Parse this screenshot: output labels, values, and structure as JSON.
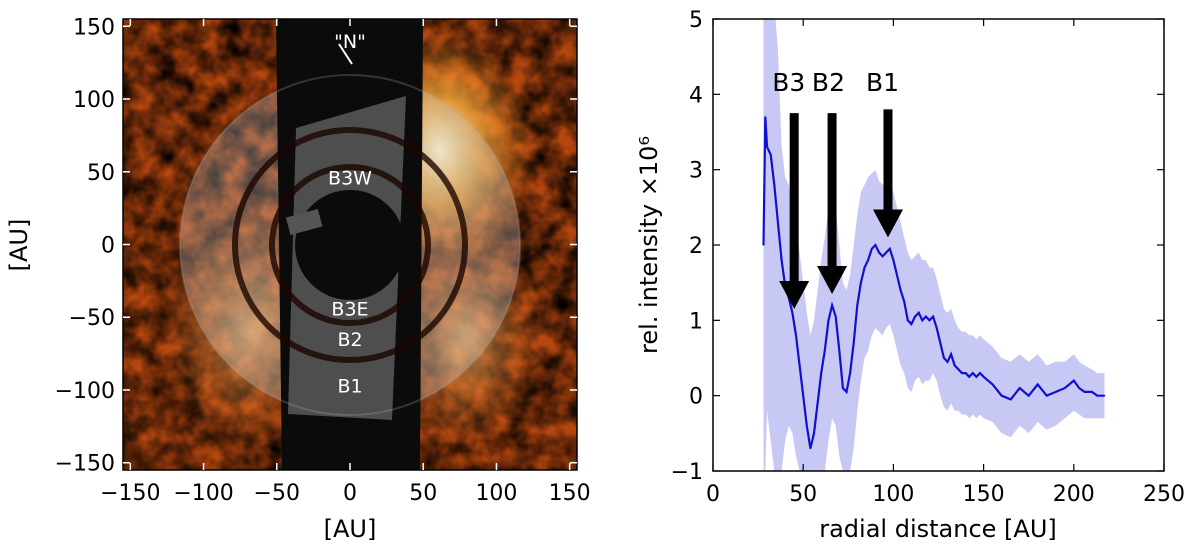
{
  "chart_data": [
    {
      "type": "heatmap",
      "xlabel": "[AU]",
      "ylabel": "[AU]",
      "xlim": [
        -155,
        155
      ],
      "ylim": [
        -155,
        155
      ],
      "xticks": [
        -150,
        -100,
        -50,
        0,
        50,
        100,
        150
      ],
      "yticks": [
        -150,
        -100,
        -50,
        0,
        50,
        100,
        150
      ],
      "xtick_labels": [
        "−150",
        "−100",
        "−50",
        "0",
        "50",
        "100",
        "150"
      ],
      "ytick_labels": [
        "−150",
        "−100",
        "−50",
        "0",
        "50",
        "100",
        "150"
      ],
      "colormap": "afmhot",
      "masked_wedge_color": "#0a0a0a",
      "overlay_color": "#9a9a9a",
      "rings": [
        {
          "name": "B1",
          "radius": 115
        },
        {
          "name": "B2",
          "radius": 78
        },
        {
          "name": "B3",
          "radius": 50
        }
      ],
      "annotations": [
        {
          "text": "\"N\"",
          "x": 0,
          "y": 140
        },
        {
          "text": "B3W",
          "x": 0,
          "y": 46
        },
        {
          "text": "B3E",
          "x": 0,
          "y": -44
        },
        {
          "text": "B2",
          "x": 0,
          "y": -65
        },
        {
          "text": "B1",
          "x": 0,
          "y": -97
        }
      ]
    },
    {
      "type": "line",
      "xlabel": "radial distance [AU]",
      "ylabel": "rel. intensity ×10⁶",
      "xlim": [
        0,
        250
      ],
      "ylim": [
        -1,
        5
      ],
      "xticks": [
        0,
        50,
        100,
        150,
        200,
        250
      ],
      "yticks": [
        -1,
        0,
        1,
        2,
        3,
        4,
        5
      ],
      "xtick_labels": [
        "0",
        "50",
        "100",
        "150",
        "200",
        "250"
      ],
      "ytick_labels": [
        "−1",
        "0",
        "1",
        "2",
        "3",
        "4",
        "5"
      ],
      "line_color": "#1010d0",
      "band_color": "#c8c8f5",
      "series": [
        {
          "x": [
            28,
            29,
            30,
            32,
            34,
            36,
            38,
            40,
            42,
            44,
            46,
            48,
            50,
            52,
            54,
            56,
            58,
            60,
            62,
            64,
            66,
            68,
            70,
            72,
            74,
            76,
            78,
            80,
            82,
            84,
            86,
            88,
            90,
            92,
            94,
            96,
            98,
            100,
            102,
            104,
            106,
            108,
            110,
            112,
            114,
            116,
            118,
            120,
            122,
            124,
            126,
            128,
            130,
            132,
            134,
            136,
            138,
            140,
            142,
            144,
            146,
            148,
            150,
            155,
            160,
            165,
            170,
            175,
            180,
            185,
            190,
            195,
            200,
            203,
            206,
            210,
            213,
            217
          ],
          "values": [
            2.0,
            3.7,
            3.3,
            3.2,
            2.8,
            2.3,
            1.8,
            1.45,
            1.3,
            1.1,
            0.8,
            0.4,
            0.0,
            -0.4,
            -0.7,
            -0.5,
            -0.1,
            0.3,
            0.6,
            1.0,
            1.2,
            1.05,
            0.6,
            0.1,
            0.05,
            0.3,
            0.7,
            1.2,
            1.5,
            1.7,
            1.8,
            1.95,
            2.0,
            1.9,
            1.85,
            1.9,
            1.95,
            1.8,
            1.6,
            1.4,
            1.25,
            1.0,
            0.95,
            1.05,
            1.1,
            1.0,
            1.05,
            1.0,
            1.05,
            0.9,
            0.7,
            0.5,
            0.45,
            0.55,
            0.4,
            0.35,
            0.3,
            0.3,
            0.25,
            0.3,
            0.25,
            0.3,
            0.25,
            0.15,
            0.0,
            -0.05,
            0.1,
            0.0,
            0.15,
            0.0,
            0.05,
            0.1,
            0.2,
            0.1,
            0.05,
            0.05,
            0.0,
            0.0
          ],
          "err_upper": [
            5.2,
            5.2,
            5.2,
            5.2,
            5.2,
            4.6,
            3.3,
            2.9,
            2.8,
            2.6,
            2.3,
            1.9,
            1.5,
            1.1,
            0.8,
            1.0,
            1.4,
            1.8,
            2.1,
            2.5,
            2.7,
            2.5,
            2.0,
            1.5,
            1.4,
            1.6,
            2.0,
            2.4,
            2.7,
            2.8,
            2.9,
            2.95,
            3.0,
            2.85,
            2.8,
            2.8,
            2.85,
            2.7,
            2.5,
            2.3,
            2.1,
            1.9,
            1.8,
            1.85,
            1.9,
            1.8,
            1.8,
            1.7,
            1.7,
            1.55,
            1.35,
            1.15,
            1.1,
            1.15,
            1.0,
            0.9,
            0.85,
            0.85,
            0.8,
            0.8,
            0.75,
            0.8,
            0.75,
            0.65,
            0.5,
            0.45,
            0.55,
            0.45,
            0.55,
            0.4,
            0.45,
            0.45,
            0.55,
            0.45,
            0.4,
            0.35,
            0.3,
            0.3
          ],
          "err_lower": [
            -1.0,
            -1.0,
            -0.2,
            -0.6,
            -1.0,
            -1.0,
            -1.0,
            -0.6,
            -0.4,
            -0.5,
            -0.8,
            -1.0,
            -1.0,
            -1.0,
            -1.0,
            -1.0,
            -1.0,
            -1.0,
            -1.0,
            -0.6,
            -0.3,
            -0.4,
            -0.8,
            -1.0,
            -1.0,
            -1.0,
            -0.7,
            -0.2,
            0.2,
            0.5,
            0.6,
            0.8,
            0.9,
            0.85,
            0.8,
            0.9,
            0.95,
            0.8,
            0.6,
            0.4,
            0.3,
            0.1,
            0.05,
            0.2,
            0.25,
            0.15,
            0.2,
            0.2,
            0.3,
            0.2,
            0.0,
            -0.15,
            -0.2,
            -0.1,
            -0.2,
            -0.2,
            -0.25,
            -0.25,
            -0.3,
            -0.25,
            -0.3,
            -0.25,
            -0.3,
            -0.35,
            -0.5,
            -0.55,
            -0.4,
            -0.5,
            -0.35,
            -0.45,
            -0.4,
            -0.3,
            -0.2,
            -0.25,
            -0.3,
            -0.3,
            -0.3,
            -0.3
          ]
        }
      ],
      "arrows": [
        {
          "label": "B3",
          "x": 45,
          "y_tail": 3.75,
          "y_head": 1.15,
          "label_x": 42,
          "label_y": 4.1
        },
        {
          "label": "B2",
          "x": 66,
          "y_tail": 3.75,
          "y_head": 1.35,
          "label_x": 64,
          "label_y": 4.1
        },
        {
          "label": "B1",
          "x": 97,
          "y_tail": 3.8,
          "y_head": 2.1,
          "label_x": 94,
          "label_y": 4.1
        }
      ]
    }
  ]
}
